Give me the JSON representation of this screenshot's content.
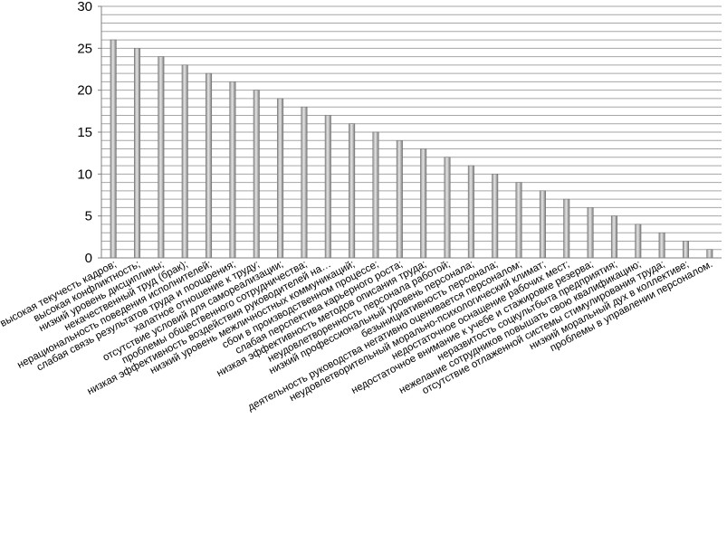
{
  "chart_data": {
    "type": "bar",
    "title": "",
    "xlabel": "",
    "ylabel": "",
    "ylim": [
      0,
      30
    ],
    "yticks": [
      0,
      5,
      10,
      15,
      20,
      25,
      30
    ],
    "minor_grid_step": 1,
    "grid": true,
    "legend": "none",
    "bar_color": "#b5b5b5",
    "categories": [
      "высокая текучесть кадров;",
      "высокая конфликтность;",
      "низкий уровень дисциплины;",
      "некачественный труд (брак);",
      "нерациональность поведения исполнителей;",
      "слабая связь результатов труда и поощрения;",
      "халатное отношение к труду;",
      "отсутствие условий для самореализации;",
      "проблемы общественного сотрудничества;",
      "низкая эффективность воздействия руководителей на…",
      "низкий уровень межличностных коммуникаций;",
      "сбои в производственном процессе;",
      "слабая перспектива карьерного роста;",
      "низкая эффективность методов описания труда;",
      "неудовлетворенность персонала работой;",
      "низкий профессиональный уровень персонала;",
      "безынициативность персонала;",
      "деятельность руководства негативно оценивается персоналом;",
      "неудовлетворительный морально-психологический климат;",
      "недостаточное оснащение рабочих мест;",
      "недостаточное внимание к учебе и стажировке резерва;",
      "неразвитость соцкультбыта предприятия;",
      "нежелание сотрудников повышать свою квалификацию;",
      "отсутствие отлаженной системы стимулирования труда;",
      "низкий моральный дух в коллективе;",
      "проблемы в управлении персоналом."
    ],
    "values": [
      26,
      25,
      24,
      23,
      22,
      21,
      20,
      19,
      18,
      17,
      16,
      15,
      14,
      13,
      12,
      11,
      10,
      9,
      8,
      7,
      6,
      5,
      4,
      3,
      2,
      1
    ]
  }
}
